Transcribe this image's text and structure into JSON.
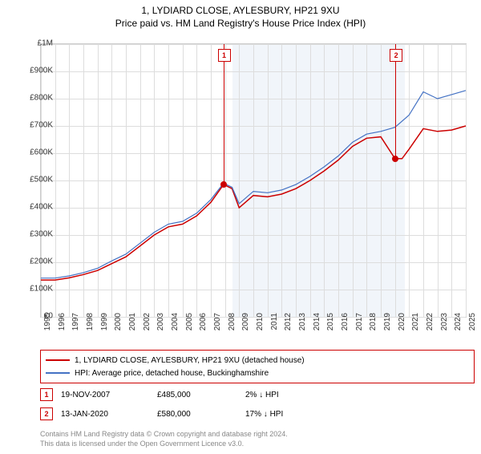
{
  "title": "1, LYDIARD CLOSE, AYLESBURY, HP21 9XU",
  "subtitle": "Price paid vs. HM Land Registry's House Price Index (HPI)",
  "chart": {
    "type": "line",
    "ylim": [
      0,
      1000000
    ],
    "ytick_step": 100000,
    "y_labels": [
      "£0",
      "£100K",
      "£200K",
      "£300K",
      "£400K",
      "£500K",
      "£600K",
      "£700K",
      "£800K",
      "£900K",
      "£1M"
    ],
    "x_labels": [
      "1995",
      "1996",
      "1997",
      "1998",
      "1999",
      "2000",
      "2001",
      "2002",
      "2003",
      "2004",
      "2005",
      "2006",
      "2007",
      "2008",
      "2009",
      "2010",
      "2011",
      "2012",
      "2013",
      "2014",
      "2015",
      "2016",
      "2017",
      "2018",
      "2019",
      "2020",
      "2021",
      "2022",
      "2023",
      "2024",
      "2025"
    ],
    "background_color": "#ffffff",
    "grid_color": "#dddddd",
    "shaded_region": {
      "from_year": 2008.5,
      "to_year": 2020.7,
      "color": "#e8eef7"
    },
    "series": [
      {
        "name": "1, LYDIARD CLOSE, AYLESBURY, HP21 9XU (detached house)",
        "color": "#cc0000",
        "line_width": 1.5,
        "data": {
          "1995": 135000,
          "1996": 135000,
          "1997": 143000,
          "1998": 155000,
          "1999": 170000,
          "2000": 195000,
          "2001": 220000,
          "2002": 260000,
          "2003": 300000,
          "2004": 330000,
          "2005": 340000,
          "2006": 370000,
          "2007": 420000,
          "2007.9": 485000,
          "2008.5": 470000,
          "2009": 400000,
          "2010": 445000,
          "2011": 440000,
          "2012": 450000,
          "2013": 470000,
          "2014": 500000,
          "2015": 535000,
          "2016": 575000,
          "2017": 625000,
          "2018": 655000,
          "2019": 660000,
          "2020": 580000,
          "2020.5": 580000,
          "2021": 615000,
          "2022": 690000,
          "2023": 680000,
          "2024": 685000,
          "2025": 700000
        }
      },
      {
        "name": "HPI: Average price, detached house, Buckinghamshire",
        "color": "#4472c4",
        "line_width": 1.2,
        "data": {
          "1995": 142000,
          "1996": 142000,
          "1997": 150000,
          "1998": 162000,
          "1999": 178000,
          "2000": 205000,
          "2001": 230000,
          "2002": 270000,
          "2003": 310000,
          "2004": 340000,
          "2005": 350000,
          "2006": 380000,
          "2007": 430000,
          "2007.9": 490000,
          "2008.5": 475000,
          "2009": 415000,
          "2010": 460000,
          "2011": 455000,
          "2012": 465000,
          "2013": 485000,
          "2014": 515000,
          "2015": 550000,
          "2016": 590000,
          "2017": 640000,
          "2018": 670000,
          "2019": 680000,
          "2020": 695000,
          "2021": 740000,
          "2022": 825000,
          "2023": 800000,
          "2024": 815000,
          "2025": 830000
        }
      }
    ],
    "markers": [
      {
        "id": "1",
        "year": 2007.88,
        "value": 485000
      },
      {
        "id": "2",
        "year": 2020.03,
        "value": 580000
      }
    ]
  },
  "legend": {
    "series1_label": "1, LYDIARD CLOSE, AYLESBURY, HP21 9XU (detached house)",
    "series2_label": "HPI: Average price, detached house, Buckinghamshire",
    "series1_color": "#cc0000",
    "series2_color": "#4472c4"
  },
  "events": [
    {
      "id": "1",
      "date": "19-NOV-2007",
      "price": "£485,000",
      "delta": "2% ↓ HPI"
    },
    {
      "id": "2",
      "date": "13-JAN-2020",
      "price": "£580,000",
      "delta": "17% ↓ HPI"
    }
  ],
  "footer": {
    "line1": "Contains HM Land Registry data © Crown copyright and database right 2024.",
    "line2": "This data is licensed under the Open Government Licence v3.0."
  }
}
